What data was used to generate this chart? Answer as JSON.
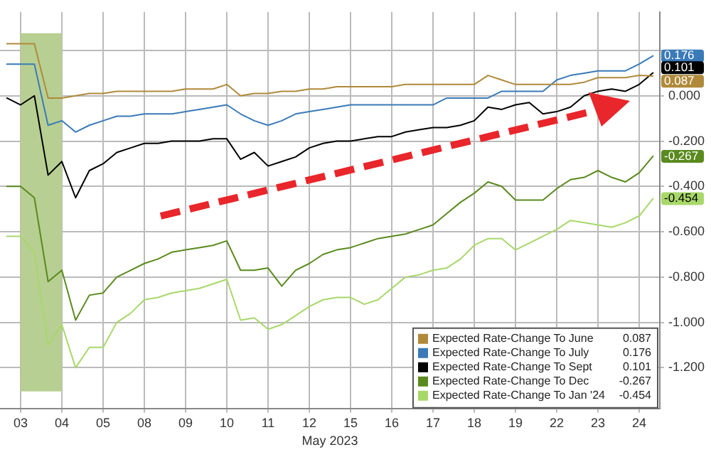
{
  "chart_data": {
    "type": "line",
    "xlabel": "May 2023",
    "categories": [
      null,
      "03",
      null,
      null,
      "04",
      null,
      null,
      "05",
      null,
      null,
      "08",
      null,
      null,
      "09",
      null,
      null,
      "10",
      null,
      null,
      "11",
      null,
      null,
      "12",
      null,
      null,
      "15",
      null,
      null,
      "16",
      null,
      null,
      "17",
      null,
      null,
      "18",
      null,
      null,
      "19",
      null,
      null,
      "22",
      null,
      null,
      "23",
      null,
      null,
      "24",
      null
    ],
    "ylim": [
      -1.38,
      0.37
    ],
    "yticks": [
      {
        "value": 0.2,
        "label": null
      },
      {
        "value": 0,
        "label": "0.000"
      },
      {
        "value": -0.2,
        "label": "-0.200"
      },
      {
        "value": -0.4,
        "label": "-0.400"
      },
      {
        "value": -0.6,
        "label": "-0.600"
      },
      {
        "value": -0.8,
        "label": "-0.800"
      },
      {
        "value": -1,
        "label": "-1.000"
      },
      {
        "value": -1.2,
        "label": "-1.200"
      }
    ],
    "grid": true,
    "legend": "bottom right",
    "marker": "none",
    "line_style": "solid",
    "bands": [
      {
        "axis": "x",
        "from": "03",
        "to": "04",
        "color": "#b7cf92"
      }
    ],
    "series": [
      {
        "name": "Expected Rate-Change To June",
        "color": "#b08a3a",
        "values": [
          0.23,
          0.23,
          0.23,
          -0.01,
          -0.01,
          0,
          0.01,
          0.01,
          0.02,
          0.02,
          0.02,
          0.02,
          0.02,
          0.03,
          0.03,
          0.03,
          0.05,
          0,
          0.01,
          0.01,
          0.02,
          0.02,
          0.03,
          0.03,
          0.04,
          0.04,
          0.04,
          0.04,
          0.04,
          0.05,
          0.05,
          0.05,
          0.05,
          0.05,
          0.05,
          0.09,
          0.07,
          0.05,
          0.05,
          0.05,
          0.05,
          0.05,
          0.06,
          0.08,
          0.08,
          0.08,
          0.09,
          0.087
        ],
        "value_labels": [
          null,
          null,
          null,
          null,
          null,
          null,
          null,
          null,
          null,
          null,
          null,
          null,
          null,
          null,
          null,
          null,
          null,
          null,
          null,
          null,
          null,
          null,
          null,
          null,
          null,
          null,
          null,
          null,
          null,
          null,
          null,
          null,
          null,
          null,
          null,
          null,
          null,
          null,
          null,
          null,
          null,
          null,
          null,
          null,
          null,
          null,
          null,
          "0.087"
        ]
      },
      {
        "name": "Expected Rate-Change To July",
        "color": "#3a7ab8",
        "values": [
          0.14,
          0.14,
          0.14,
          -0.13,
          -0.11,
          -0.16,
          -0.13,
          -0.11,
          -0.09,
          -0.09,
          -0.08,
          -0.08,
          -0.08,
          -0.07,
          -0.06,
          -0.05,
          -0.04,
          -0.08,
          -0.11,
          -0.13,
          -0.11,
          -0.08,
          -0.07,
          -0.06,
          -0.05,
          -0.04,
          -0.04,
          -0.04,
          -0.04,
          -0.04,
          -0.04,
          -0.04,
          -0.01,
          -0.01,
          -0.01,
          -0.01,
          0.02,
          0.02,
          0.02,
          0.02,
          0.07,
          0.09,
          0.1,
          0.11,
          0.11,
          0.11,
          0.14,
          0.176
        ],
        "value_labels": [
          null,
          null,
          null,
          null,
          null,
          null,
          null,
          null,
          null,
          null,
          null,
          null,
          null,
          null,
          null,
          null,
          null,
          null,
          null,
          null,
          null,
          null,
          null,
          null,
          null,
          null,
          null,
          null,
          null,
          null,
          null,
          null,
          null,
          null,
          null,
          null,
          null,
          null,
          null,
          null,
          null,
          null,
          null,
          null,
          null,
          null,
          null,
          "0.176"
        ]
      },
      {
        "name": "Expected Rate-Change To Sept",
        "color": "#000000",
        "values": [
          -0.01,
          -0.04,
          0,
          -0.35,
          -0.29,
          -0.45,
          -0.33,
          -0.3,
          -0.25,
          -0.23,
          -0.21,
          -0.21,
          -0.2,
          -0.2,
          -0.2,
          -0.19,
          -0.19,
          -0.28,
          -0.25,
          -0.31,
          -0.29,
          -0.27,
          -0.23,
          -0.21,
          -0.2,
          -0.2,
          -0.19,
          -0.18,
          -0.18,
          -0.16,
          -0.15,
          -0.14,
          -0.14,
          -0.13,
          -0.11,
          -0.05,
          -0.06,
          -0.04,
          -0.03,
          -0.08,
          -0.07,
          -0.05,
          0,
          0.02,
          0.03,
          0.02,
          0.05,
          0.101
        ],
        "value_labels": [
          null,
          null,
          null,
          null,
          null,
          null,
          null,
          null,
          null,
          null,
          null,
          null,
          null,
          null,
          null,
          null,
          null,
          null,
          null,
          null,
          null,
          null,
          null,
          null,
          null,
          null,
          null,
          null,
          null,
          null,
          null,
          null,
          null,
          null,
          null,
          null,
          null,
          null,
          null,
          null,
          null,
          null,
          null,
          null,
          null,
          null,
          null,
          "0.101"
        ]
      },
      {
        "name": "Expected Rate-Change To Dec",
        "color": "#5a8a1e",
        "values": [
          -0.4,
          -0.4,
          -0.45,
          -0.82,
          -0.77,
          -0.99,
          -0.88,
          -0.87,
          -0.8,
          -0.77,
          -0.74,
          -0.72,
          -0.69,
          -0.68,
          -0.67,
          -0.66,
          -0.64,
          -0.77,
          -0.77,
          -0.76,
          -0.84,
          -0.77,
          -0.74,
          -0.7,
          -0.68,
          -0.67,
          -0.65,
          -0.63,
          -0.62,
          -0.61,
          -0.59,
          -0.57,
          -0.52,
          -0.47,
          -0.43,
          -0.38,
          -0.4,
          -0.46,
          -0.46,
          -0.46,
          -0.41,
          -0.37,
          -0.36,
          -0.33,
          -0.36,
          -0.38,
          -0.34,
          -0.267
        ],
        "value_labels": [
          null,
          null,
          null,
          null,
          null,
          null,
          null,
          null,
          null,
          null,
          null,
          null,
          null,
          null,
          null,
          null,
          null,
          null,
          null,
          null,
          null,
          null,
          null,
          null,
          null,
          null,
          null,
          null,
          null,
          null,
          null,
          null,
          null,
          null,
          null,
          null,
          null,
          null,
          null,
          null,
          null,
          null,
          null,
          null,
          null,
          null,
          null,
          "-0.267"
        ]
      },
      {
        "name": "Expected Rate-Change To Jan '24",
        "color": "#a8d86a",
        "values": [
          -0.62,
          -0.62,
          -0.69,
          -1.1,
          -1.01,
          -1.2,
          -1.11,
          -1.11,
          -1,
          -0.96,
          -0.9,
          -0.89,
          -0.87,
          -0.86,
          -0.85,
          -0.83,
          -0.81,
          -0.99,
          -0.98,
          -1.03,
          -1.01,
          -0.97,
          -0.93,
          -0.9,
          -0.89,
          -0.89,
          -0.92,
          -0.9,
          -0.85,
          -0.8,
          -0.79,
          -0.77,
          -0.76,
          -0.72,
          -0.66,
          -0.63,
          -0.63,
          -0.68,
          -0.65,
          -0.62,
          -0.59,
          -0.55,
          -0.56,
          -0.57,
          -0.58,
          -0.56,
          -0.53,
          -0.454
        ],
        "value_labels": [
          null,
          null,
          null,
          null,
          null,
          null,
          null,
          null,
          null,
          null,
          null,
          null,
          null,
          null,
          null,
          null,
          null,
          null,
          null,
          null,
          null,
          null,
          null,
          null,
          null,
          null,
          null,
          null,
          null,
          null,
          null,
          null,
          null,
          null,
          null,
          null,
          null,
          null,
          null,
          null,
          null,
          null,
          null,
          null,
          null,
          null,
          null,
          "-0.454"
        ]
      }
    ]
  }
}
